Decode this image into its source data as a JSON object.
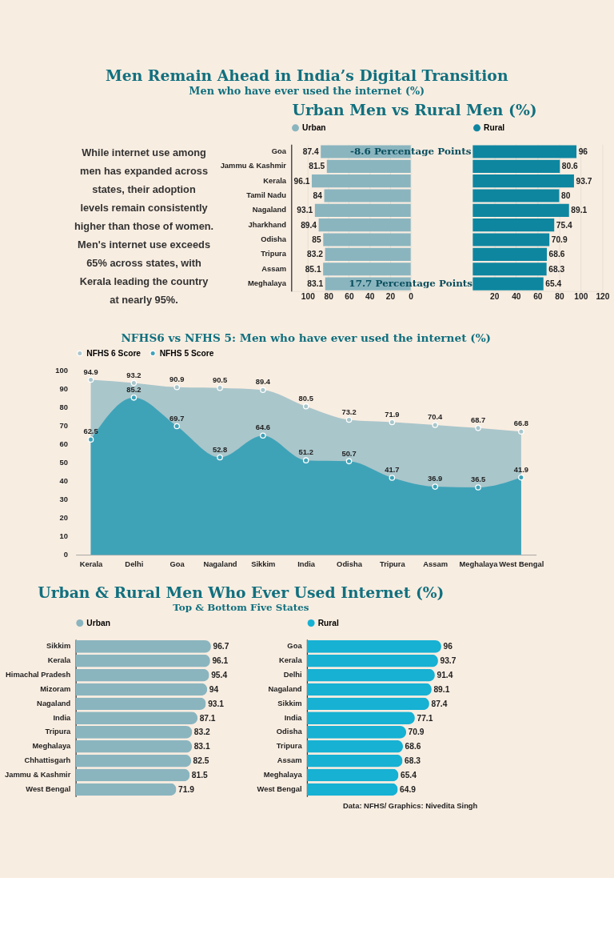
{
  "chart_data": [
    {
      "type": "other",
      "title": "Men Remain Ahead in India’s Digital Transition",
      "subtitle": "Men who have ever used the internet (%)",
      "annotations": [
        "While internet use among men has expanded across states, their adoption levels remain consistently higher than those of women. Men's internet use exceeds 65% across states, with Kerala leading the country at nearly 95%."
      ]
    },
    {
      "type": "bar",
      "orientation": "horizontal",
      "title": "Urban Men vs Rural Men (%)",
      "categories": [
        "Goa",
        "Jammu & Kashmir",
        "Kerala",
        "Tamil Nadu",
        "Nagaland",
        "Jharkhand",
        "Odisha",
        "Tripura",
        "Assam",
        "Meghalaya"
      ],
      "series": [
        {
          "name": "Urban",
          "color": "#8ab5bf",
          "values": [
            87.4,
            81.5,
            96.1,
            84,
            93.1,
            89.4,
            85,
            83.2,
            85.1,
            83.1
          ]
        }
      ],
      "xlim": [
        116,
        0
      ],
      "xticks": [
        100,
        80,
        60,
        40,
        20,
        0
      ],
      "grid": "x",
      "legend": "top",
      "data_labels": true,
      "annotations": [
        {
          "text": "-8.6 Percentage Points",
          "x": 0,
          "y": "Goa"
        },
        {
          "text": "17.7 Percentage Points",
          "x": 0,
          "y": "Meghalaya"
        }
      ]
    },
    {
      "type": "bar",
      "orientation": "horizontal",
      "categories": [
        "Goa",
        "Jammu & Kashmir",
        "Kerala",
        "Tamil Nadu",
        "Nagaland",
        "Jharkhand",
        "Odisha",
        "Tripura",
        "Assam",
        "Meghalaya"
      ],
      "series": [
        {
          "name": "Rural",
          "color": "#0e86a0",
          "values": [
            96,
            80.6,
            93.7,
            80,
            89.1,
            75.4,
            70.9,
            68.6,
            68.3,
            65.4
          ]
        }
      ],
      "xlim": [
        0,
        120
      ],
      "xticks": [
        20,
        40,
        60,
        80,
        100,
        120
      ],
      "grid": "x",
      "legend": "top",
      "data_labels": true,
      "tick_labels": "x"
    },
    {
      "type": "area",
      "title": "NFHS6 vs NFHS 5: Men who have ever used the internet (%)",
      "categories": [
        "Kerala",
        "Delhi",
        "Goa",
        "Nagaland",
        "Sikkim",
        "India",
        "Odisha",
        "Tripura",
        "Assam",
        "Meghalaya",
        "West Bengal"
      ],
      "series": [
        {
          "name": "NFHS 6 Score",
          "color": "#a9c6cb",
          "values": [
            94.9,
            93.2,
            90.9,
            90.5,
            89.4,
            80.5,
            73.2,
            71.9,
            70.4,
            68.7,
            66.8
          ]
        },
        {
          "name": "NFHS 5 Score",
          "color": "#3fa3b8",
          "values": [
            62.5,
            85.2,
            69.7,
            52.8,
            64.6,
            51.2,
            50.7,
            41.7,
            36.9,
            36.5,
            41.9
          ]
        }
      ],
      "ylim": [
        0,
        100
      ],
      "yticks": [
        0,
        10,
        20,
        30,
        40,
        50,
        60,
        70,
        80,
        90,
        100
      ],
      "legend": "top",
      "marker": "circle",
      "data_labels": true
    },
    {
      "type": "bar",
      "orientation": "horizontal",
      "title": "Urban & Rural Men Who Ever Used Internet (%)",
      "subtitle": "Top & Bottom Five States",
      "categories": [
        "Sikkim",
        "Kerala",
        "Himachal Pradesh",
        "Mizoram",
        "Nagaland",
        "India",
        "Tripura",
        "Meghalaya",
        "Chhattisgarh",
        "Jammu & Kashmir",
        "West Bengal"
      ],
      "series": [
        {
          "name": "Urban",
          "color": "#8ab5bf",
          "values": [
            96.7,
            96.1,
            95.4,
            94,
            93.1,
            87.1,
            83.2,
            83.1,
            82.5,
            81.5,
            71.9
          ]
        }
      ],
      "legend": "top",
      "data_labels": true,
      "tick_labels": "y"
    },
    {
      "type": "bar",
      "orientation": "horizontal",
      "categories": [
        "Goa",
        "Kerala",
        "Delhi",
        "Nagaland",
        "Sikkim",
        "India",
        "Odisha",
        "Tripura",
        "Assam",
        "Meghalaya",
        "West Bengal"
      ],
      "series": [
        {
          "name": "Rural",
          "color": "#16b1d3",
          "values": [
            96,
            93.7,
            91.4,
            89.1,
            87.4,
            77.1,
            70.9,
            68.6,
            68.3,
            65.4,
            64.9
          ]
        }
      ],
      "legend": "top",
      "data_labels": true,
      "tick_labels": "y",
      "annotations": [
        "Data: NFHS/ Graphics: Nivedita Singh"
      ]
    }
  ]
}
